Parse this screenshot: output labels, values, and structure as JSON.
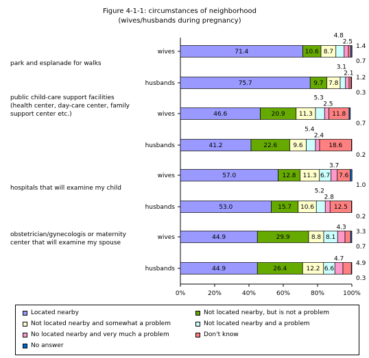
{
  "chart_data": {
    "type": "bar",
    "orientation": "horizontal",
    "stacked": true,
    "title": "Figure 4-1-1: circumstances of neighborhood",
    "subtitle": "(wives/husbands during pregnancy)",
    "xlim": [
      0,
      100
    ],
    "xticks": [
      "0%",
      "20%",
      "40%",
      "60%",
      "80%",
      "100%"
    ],
    "grid": false,
    "legend_position": "bottom",
    "groups": [
      {
        "label": "park and esplanade for walks",
        "bars": [
          {
            "label": "wives",
            "values": [
              71.4,
              10.6,
              8.7,
              4.8,
              2.5,
              1.4,
              0.7
            ]
          },
          {
            "label": "husbands",
            "values": [
              75.7,
              9.7,
              7.8,
              3.1,
              2.1,
              1.2,
              0.3
            ]
          }
        ]
      },
      {
        "label": "public child-care support facilities (health center, day-care center, family support center etc.)",
        "label_lines": [
          "public child-care support facilities",
          "(health center, day-care center, family",
          "support center etc.)"
        ],
        "bars": [
          {
            "label": "wives",
            "values": [
              46.6,
              20.9,
              11.3,
              5.3,
              2.5,
              11.8,
              0.7
            ]
          },
          {
            "label": "husbands",
            "values": [
              41.2,
              22.6,
              9.6,
              5.4,
              2.4,
              18.6,
              0.2
            ]
          }
        ]
      },
      {
        "label": "hospitals that will examine my child",
        "bars": [
          {
            "label": "wives",
            "values": [
              57.0,
              12.8,
              11.3,
              6.7,
              3.7,
              7.6,
              1.0
            ]
          },
          {
            "label": "husbands",
            "values": [
              53.0,
              15.7,
              10.6,
              5.2,
              2.8,
              12.5,
              0.2
            ]
          }
        ]
      },
      {
        "label": "obstetrician/gynecologis or maternity center that will examine my spouse",
        "label_lines": [
          "obstetrician/gynecologis or maternity",
          "center that will examine my spouse"
        ],
        "bars": [
          {
            "label": "wives",
            "values": [
              44.9,
              29.9,
              8.8,
              8.1,
              4.3,
              3.3,
              0.7
            ]
          },
          {
            "label": "husbands",
            "values": [
              44.9,
              26.4,
              12.2,
              6.6,
              4.7,
              4.9,
              0.3
            ]
          }
        ]
      }
    ],
    "series": [
      {
        "name": "Located nearby",
        "color": "#9999ff"
      },
      {
        "name": "Not located nearby, but is not a problem",
        "color": "#66aa00"
      },
      {
        "name": "Not located nearby and somewhat a problem",
        "color": "#ffffcc"
      },
      {
        "name": "Not located nearby and a problem",
        "color": "#ccffff"
      },
      {
        "name": "No located nearby and very much a problem",
        "color": "#ff99cc"
      },
      {
        "name": "Don't know",
        "color": "#ff8080"
      },
      {
        "name": "No answer",
        "color": "#0066cc"
      }
    ]
  }
}
